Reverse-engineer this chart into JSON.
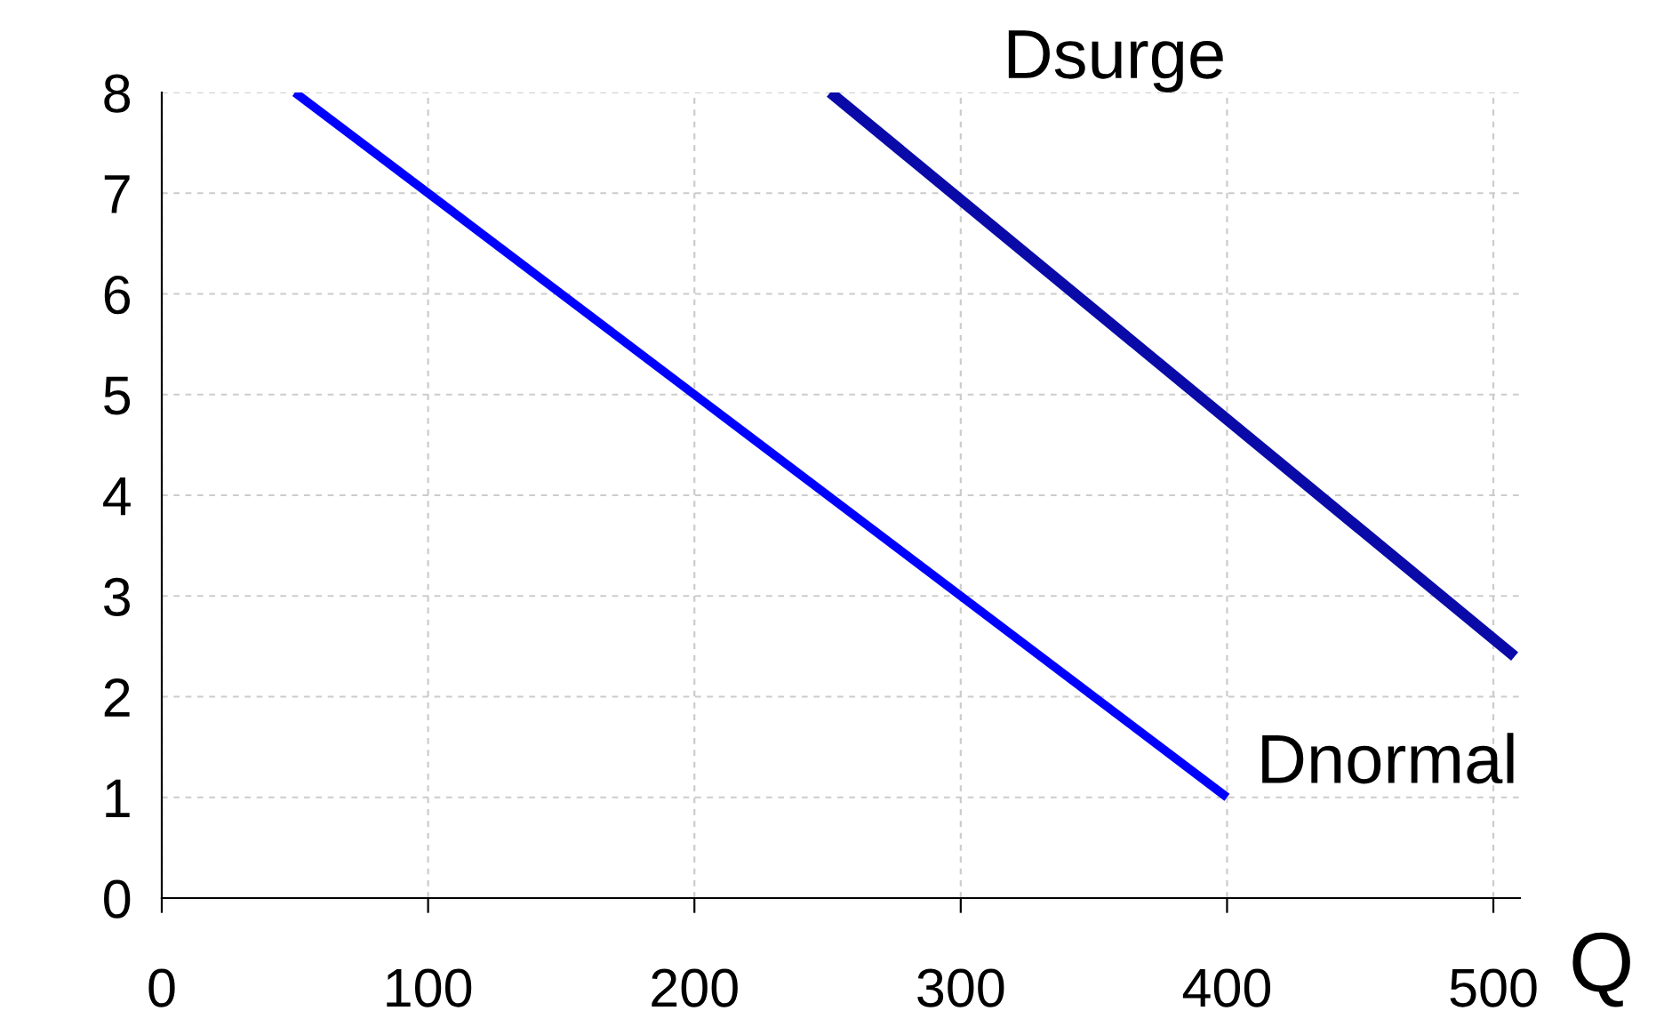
{
  "chart_data": {
    "type": "line",
    "xlabel": "Q",
    "series": [
      {
        "name": "Dnormal",
        "color": "#0000ff",
        "x": [
          50,
          400
        ],
        "values": [
          8,
          1
        ]
      },
      {
        "name": "Dsurge",
        "color": "#0a0aa8",
        "x": [
          251,
          508
        ],
        "values": [
          8,
          2.4
        ]
      }
    ],
    "xlim": [
      0,
      510
    ],
    "ylim": [
      0,
      8
    ],
    "xticks": [
      0,
      100,
      200,
      300,
      400,
      500
    ],
    "yticks": [
      0,
      1,
      2,
      3,
      4,
      5,
      6,
      7,
      8
    ],
    "grid": true,
    "legend": false,
    "marker": "none",
    "line_style": "solid"
  }
}
